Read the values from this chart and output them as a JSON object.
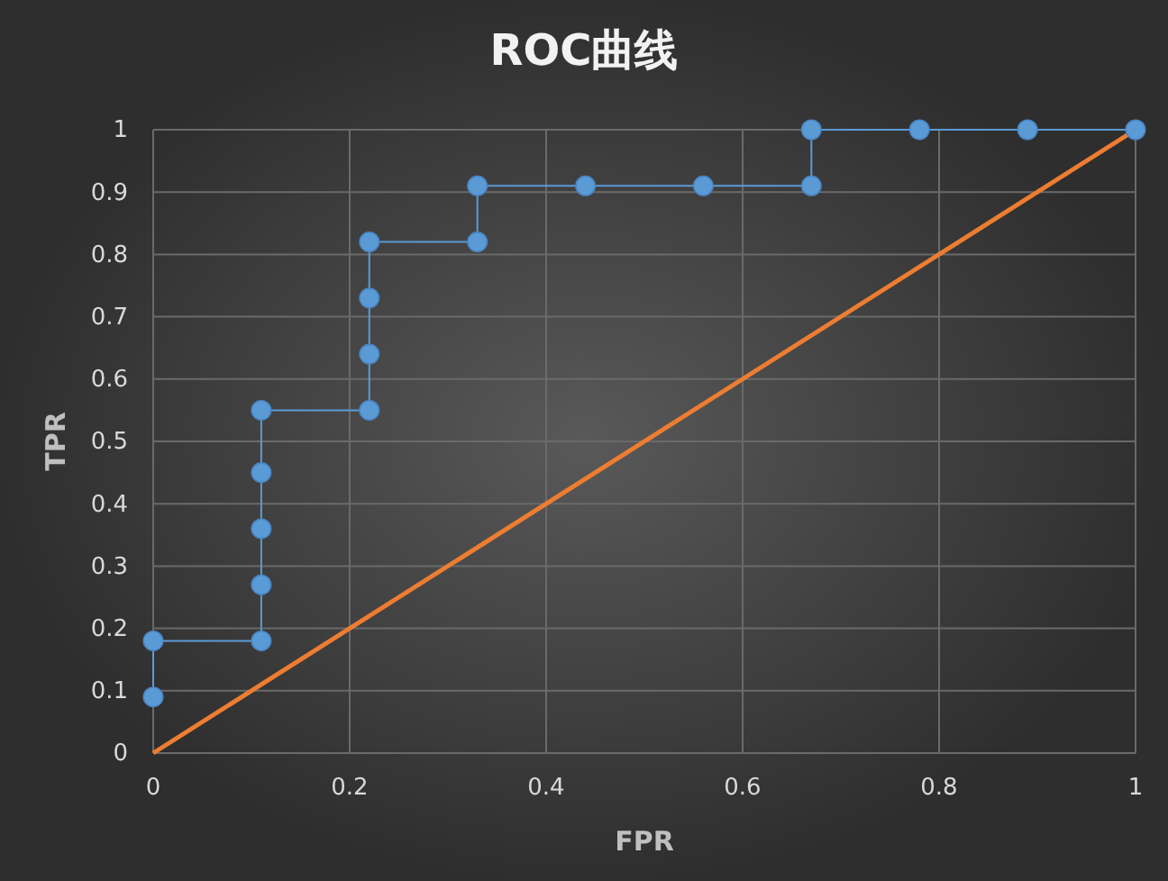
{
  "chart_data": {
    "type": "line",
    "title": "ROC曲线",
    "xlabel": "FPR",
    "ylabel": "TPR",
    "xlim": [
      0,
      1
    ],
    "xticks": [
      0,
      0.2,
      0.4,
      0.6,
      0.8,
      1
    ],
    "ylim": [
      0,
      1
    ],
    "yticks": [
      0,
      0.1,
      0.2,
      0.3,
      0.4,
      0.5,
      0.6,
      0.7,
      0.8,
      0.9,
      1
    ],
    "grid": true,
    "series": [
      {
        "color": "#5b9bd5",
        "marker": "circle",
        "x": [
          0,
          0,
          0.11,
          0.11,
          0.11,
          0.11,
          0.11,
          0.22,
          0.22,
          0.22,
          0.22,
          0.33,
          0.33,
          0.44,
          0.56,
          0.67,
          0.67,
          0.78,
          0.89,
          1
        ],
        "values": [
          0.09,
          0.18,
          0.18,
          0.27,
          0.36,
          0.45,
          0.55,
          0.55,
          0.64,
          0.73,
          0.82,
          0.82,
          0.91,
          0.91,
          0.91,
          0.91,
          1,
          1,
          1,
          1
        ]
      },
      {
        "color": "#ed7d31",
        "marker": "none",
        "x": [
          0,
          1
        ],
        "values": [
          0,
          1
        ]
      }
    ]
  }
}
